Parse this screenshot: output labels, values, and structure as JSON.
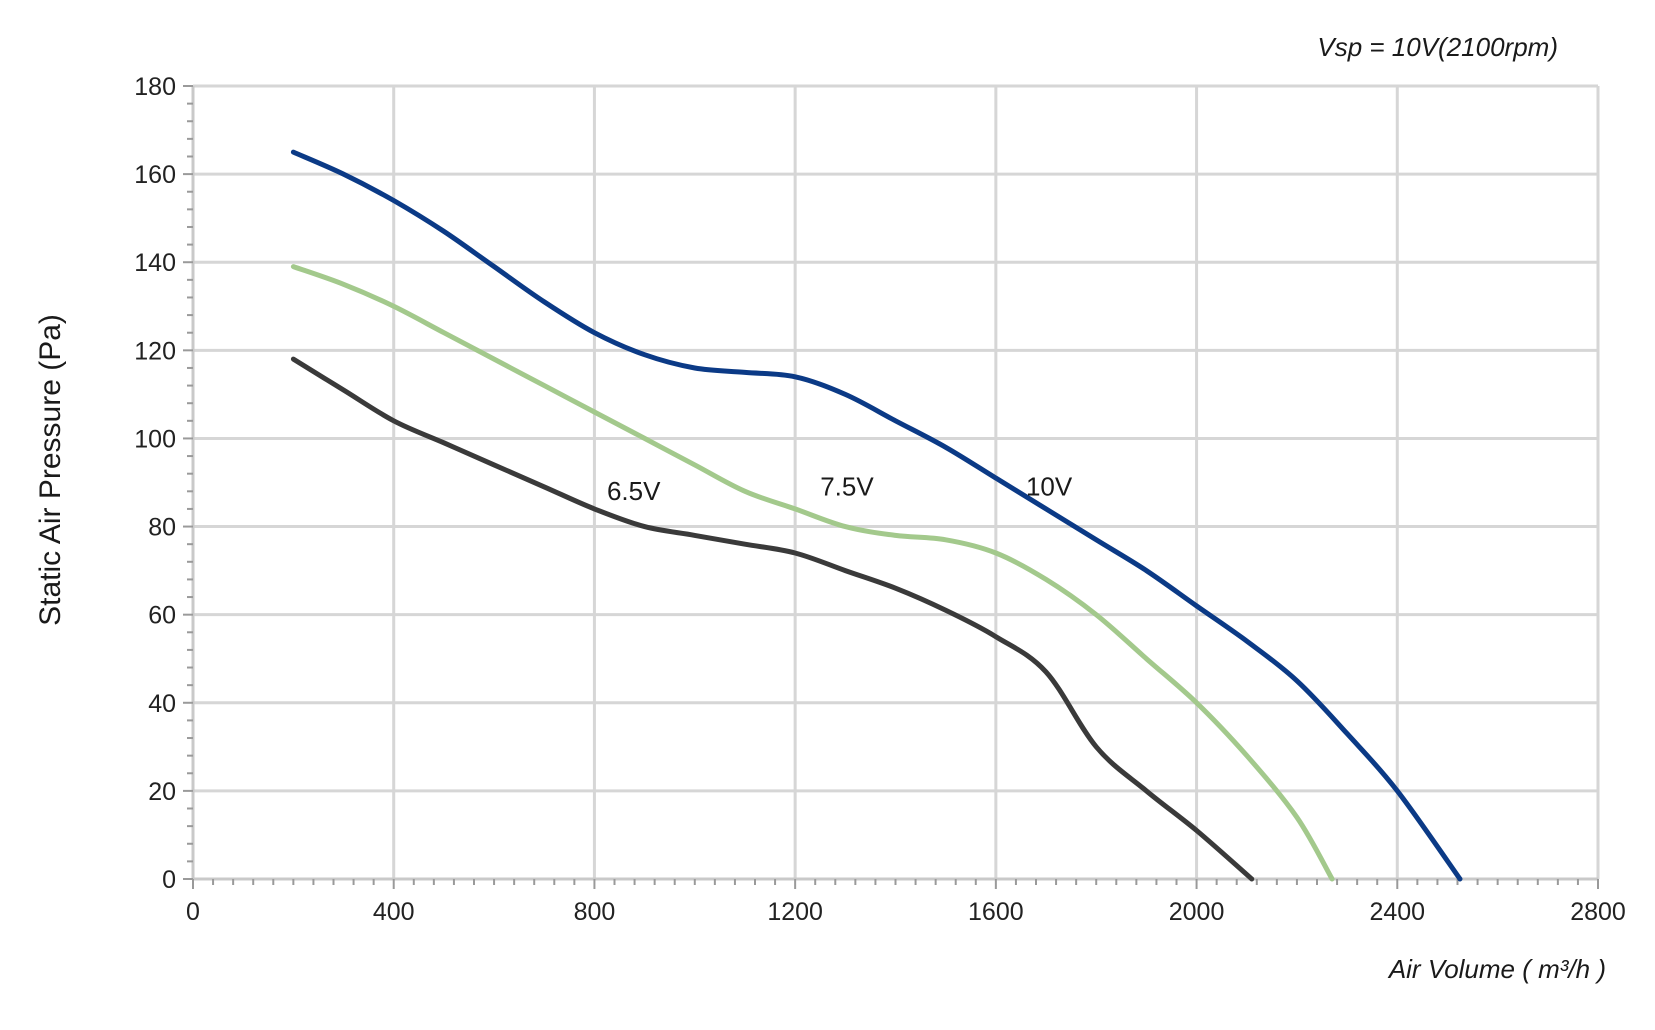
{
  "chart_data": {
    "type": "line",
    "title": "",
    "annotation": "Vsp = 10V(2100rpm)",
    "xlabel": "Air Volume ( m³/h )",
    "ylabel": "Static Air Pressure  (Pa)",
    "xlim": [
      0,
      2800
    ],
    "ylim": [
      0,
      180
    ],
    "xticks": [
      0,
      400,
      800,
      1200,
      1600,
      2000,
      2400,
      2800
    ],
    "yticks": [
      0,
      20,
      40,
      60,
      80,
      100,
      120,
      140,
      160,
      180
    ],
    "grid": true,
    "legend": "none",
    "series": [
      {
        "name": "10V",
        "color": "#0b3a86",
        "points": [
          [
            200,
            165
          ],
          [
            300,
            160
          ],
          [
            400,
            154
          ],
          [
            500,
            147
          ],
          [
            600,
            139
          ],
          [
            700,
            131
          ],
          [
            800,
            124
          ],
          [
            900,
            119
          ],
          [
            1000,
            116
          ],
          [
            1100,
            115
          ],
          [
            1200,
            114
          ],
          [
            1300,
            110
          ],
          [
            1400,
            104
          ],
          [
            1500,
            98
          ],
          [
            1600,
            91
          ],
          [
            1700,
            84
          ],
          [
            1800,
            77
          ],
          [
            1900,
            70
          ],
          [
            2000,
            62
          ],
          [
            2100,
            54
          ],
          [
            2200,
            45
          ],
          [
            2300,
            33
          ],
          [
            2400,
            20
          ],
          [
            2525,
            0
          ]
        ]
      },
      {
        "name": "7.5V",
        "color": "#a3c98c",
        "points": [
          [
            200,
            139
          ],
          [
            300,
            135
          ],
          [
            400,
            130
          ],
          [
            500,
            124
          ],
          [
            600,
            118
          ],
          [
            700,
            112
          ],
          [
            800,
            106
          ],
          [
            900,
            100
          ],
          [
            1000,
            94
          ],
          [
            1100,
            88
          ],
          [
            1200,
            84
          ],
          [
            1300,
            80
          ],
          [
            1400,
            78
          ],
          [
            1500,
            77
          ],
          [
            1600,
            74
          ],
          [
            1700,
            68
          ],
          [
            1800,
            60
          ],
          [
            1900,
            50
          ],
          [
            2000,
            40
          ],
          [
            2100,
            28
          ],
          [
            2200,
            14
          ],
          [
            2270,
            0
          ]
        ]
      },
      {
        "name": "6.5V",
        "color": "#3a3a3a",
        "points": [
          [
            200,
            118
          ],
          [
            300,
            111
          ],
          [
            400,
            104
          ],
          [
            500,
            99
          ],
          [
            600,
            94
          ],
          [
            700,
            89
          ],
          [
            800,
            84
          ],
          [
            900,
            80
          ],
          [
            1000,
            78
          ],
          [
            1100,
            76
          ],
          [
            1200,
            74
          ],
          [
            1300,
            70
          ],
          [
            1400,
            66
          ],
          [
            1500,
            61
          ],
          [
            1600,
            55
          ],
          [
            1700,
            47
          ],
          [
            1800,
            30
          ],
          [
            1900,
            20
          ],
          [
            2000,
            11
          ],
          [
            2110,
            0
          ]
        ]
      }
    ],
    "series_labels": [
      {
        "text": "10V",
        "x": 1660,
        "y": 87
      },
      {
        "text": "7.5V",
        "x": 1250,
        "y": 87
      },
      {
        "text": "6.5V",
        "x": 825,
        "y": 86
      }
    ]
  }
}
